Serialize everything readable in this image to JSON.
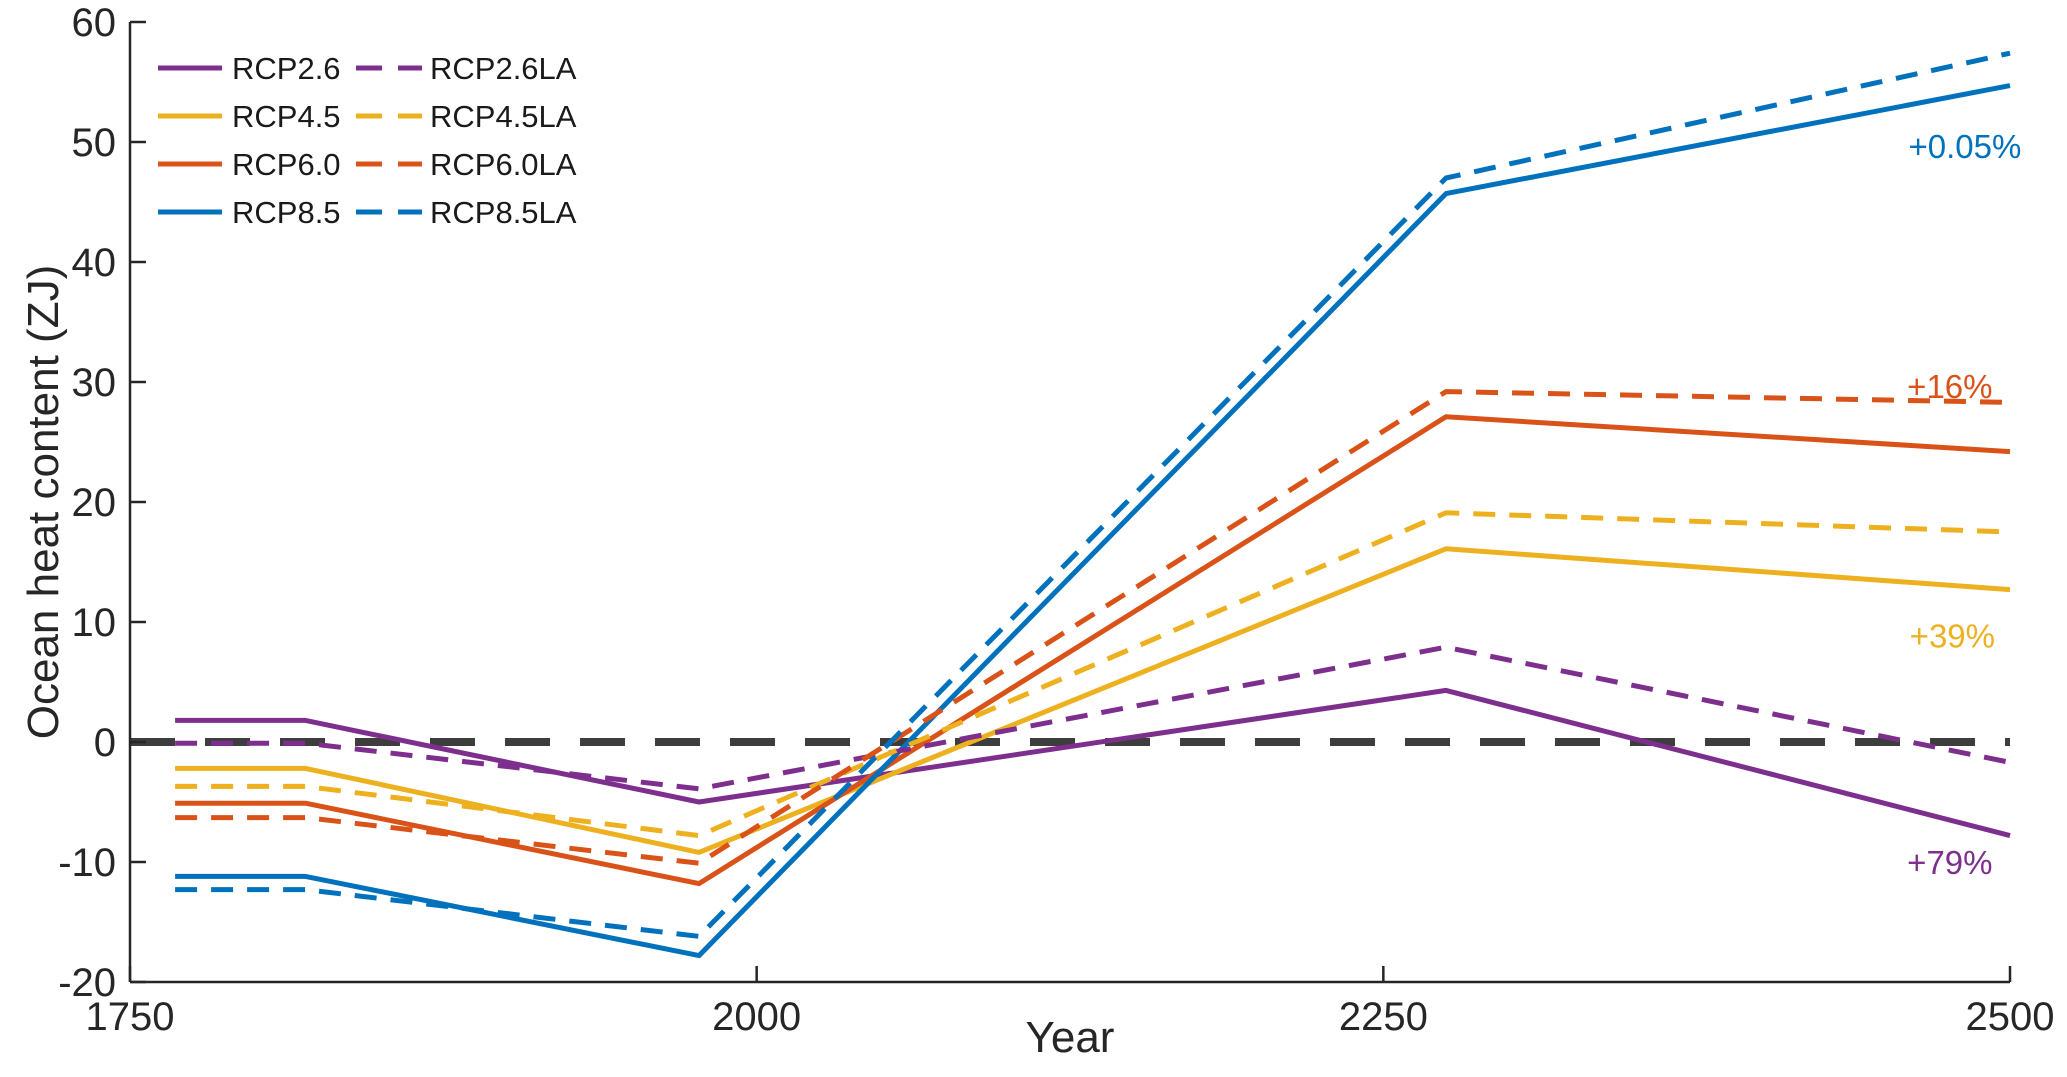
{
  "figure": {
    "background": "#FFFFFF",
    "axis_color": "#262626"
  },
  "chart_data": {
    "type": "line",
    "title": "",
    "xlabel": "Year",
    "ylabel": "Ocean heat content (ZJ)",
    "xlim": [
      1750,
      2500
    ],
    "ylim": [
      -20,
      60
    ],
    "xticks": [
      "1750",
      "2000",
      "2250",
      "2500"
    ],
    "yticks": [
      "-20",
      "-10",
      "0",
      "10",
      "20",
      "30",
      "40",
      "50",
      "60"
    ],
    "grid": false,
    "legend_position": "top-left",
    "zero_line": {
      "y": 0,
      "color": "#3D3D3D",
      "style": "dashed"
    },
    "x": [
      1768,
      1820,
      1977,
      2275,
      2500
    ],
    "series": [
      {
        "name": "RCP2.6",
        "color": "#7E2F8E",
        "style": "solid",
        "values": [
          1.8,
          1.8,
          -5.0,
          4.3,
          -7.8
        ]
      },
      {
        "name": "RCP4.5",
        "color": "#EDB120",
        "style": "solid",
        "values": [
          -2.2,
          -2.2,
          -9.2,
          16.1,
          12.7
        ]
      },
      {
        "name": "RCP6.0",
        "color": "#D95319",
        "style": "solid",
        "values": [
          -5.1,
          -5.1,
          -11.8,
          27.1,
          24.2
        ]
      },
      {
        "name": "RCP8.5",
        "color": "#0072BD",
        "style": "solid",
        "values": [
          -11.2,
          -11.2,
          -17.8,
          45.7,
          54.7
        ]
      },
      {
        "name": "RCP2.6LA",
        "color": "#7E2F8E",
        "style": "dashed",
        "values": [
          -0.1,
          -0.1,
          -3.9,
          7.9,
          -1.7
        ]
      },
      {
        "name": "RCP4.5LA",
        "color": "#EDB120",
        "style": "dashed",
        "values": [
          -3.7,
          -3.7,
          -7.8,
          19.1,
          17.5
        ]
      },
      {
        "name": "RCP6.0LA",
        "color": "#D95319",
        "style": "dashed",
        "values": [
          -6.3,
          -6.3,
          -10.1,
          29.2,
          28.3
        ]
      },
      {
        "name": "RCP8.5LA",
        "color": "#0072BD",
        "style": "dashed",
        "values": [
          -12.3,
          -12.3,
          -16.2,
          47.0,
          57.4
        ]
      }
    ],
    "legend_order": [
      "RCP2.6",
      "RCP2.6LA",
      "RCP4.5",
      "RCP4.5LA",
      "RCP6.0",
      "RCP6.0LA",
      "RCP8.5",
      "RCP8.5LA"
    ],
    "annotations": [
      {
        "text": "+0.05%",
        "x": 2482,
        "y": 49.6,
        "color": "#0072BD"
      },
      {
        "text": "+16%",
        "x": 2476,
        "y": 29.6,
        "color": "#D95319"
      },
      {
        "text": "+39%",
        "x": 2477,
        "y": 8.8,
        "color": "#EDB120"
      },
      {
        "text": "+79%",
        "x": 2476,
        "y": -10.1,
        "color": "#7E2F8E"
      }
    ]
  }
}
